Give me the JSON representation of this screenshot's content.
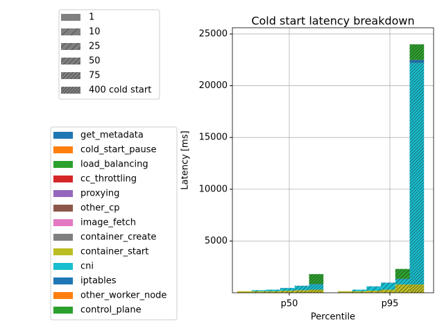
{
  "chart_data": {
    "type": "bar",
    "title": "Cold start latency breakdown",
    "x_label": "Percentile",
    "y_label": "Latency [ms]",
    "categories": [
      "p50",
      "p95"
    ],
    "groups": [
      "1",
      "10",
      "25",
      "50",
      "75",
      "400 cold start"
    ],
    "group_legend_color": "#808080",
    "stacked": true,
    "grid": true,
    "ylim": [
      0,
      25600
    ],
    "yticks": [
      5000,
      10000,
      15000,
      20000,
      25000
    ],
    "series": [
      {
        "name": "get_metadata",
        "color": "#1f77b4",
        "values": [
          [
            0,
            0,
            0,
            0,
            0,
            0
          ],
          [
            0,
            0,
            0,
            0,
            0,
            0
          ]
        ]
      },
      {
        "name": "cold_start_pause",
        "color": "#ff7f0e",
        "values": [
          [
            0,
            0,
            0,
            0,
            0,
            0
          ],
          [
            0,
            0,
            0,
            0,
            0,
            0
          ]
        ]
      },
      {
        "name": "load_balancing",
        "color": "#2ca02c",
        "values": [
          [
            0,
            0,
            0,
            0,
            0,
            0
          ],
          [
            0,
            0,
            0,
            0,
            0,
            0
          ]
        ]
      },
      {
        "name": "cc_throttling",
        "color": "#d62728",
        "values": [
          [
            0,
            0,
            0,
            0,
            0,
            0
          ],
          [
            0,
            0,
            0,
            0,
            0,
            0
          ]
        ]
      },
      {
        "name": "proxying",
        "color": "#9467bd",
        "values": [
          [
            0,
            0,
            0,
            0,
            0,
            0
          ],
          [
            0,
            0,
            0,
            0,
            0,
            0
          ]
        ]
      },
      {
        "name": "other_cp",
        "color": "#8c564b",
        "values": [
          [
            0,
            0,
            0,
            0,
            0,
            0
          ],
          [
            0,
            0,
            0,
            0,
            0,
            0
          ]
        ]
      },
      {
        "name": "image_fetch",
        "color": "#e377c2",
        "values": [
          [
            0,
            0,
            0,
            0,
            0,
            0
          ],
          [
            0,
            0,
            0,
            0,
            0,
            0
          ]
        ]
      },
      {
        "name": "container_create",
        "color": "#7f7f7f",
        "values": [
          [
            0,
            0,
            0,
            0,
            0,
            0
          ],
          [
            0,
            0,
            0,
            0,
            0,
            0
          ]
        ]
      },
      {
        "name": "container_start",
        "color": "#bcbd22",
        "values": [
          [
            150,
            150,
            150,
            200,
            250,
            300
          ],
          [
            150,
            150,
            200,
            300,
            800,
            800
          ]
        ]
      },
      {
        "name": "cni",
        "color": "#17becf",
        "values": [
          [
            0,
            100,
            150,
            250,
            400,
            500
          ],
          [
            0,
            150,
            400,
            650,
            500,
            21400
          ]
        ]
      },
      {
        "name": "iptables",
        "color": "#1f77b4",
        "values": [
          [
            0,
            0,
            0,
            20,
            30,
            50
          ],
          [
            0,
            0,
            20,
            30,
            50,
            300
          ]
        ]
      },
      {
        "name": "other_worker_node",
        "color": "#ff7f0e",
        "values": [
          [
            0,
            0,
            0,
            0,
            0,
            0
          ],
          [
            0,
            0,
            0,
            0,
            0,
            0
          ]
        ]
      },
      {
        "name": "control_plane",
        "color": "#2ca02c",
        "values": [
          [
            0,
            0,
            0,
            0,
            0,
            950
          ],
          [
            0,
            0,
            0,
            0,
            950,
            1500
          ]
        ]
      }
    ]
  }
}
